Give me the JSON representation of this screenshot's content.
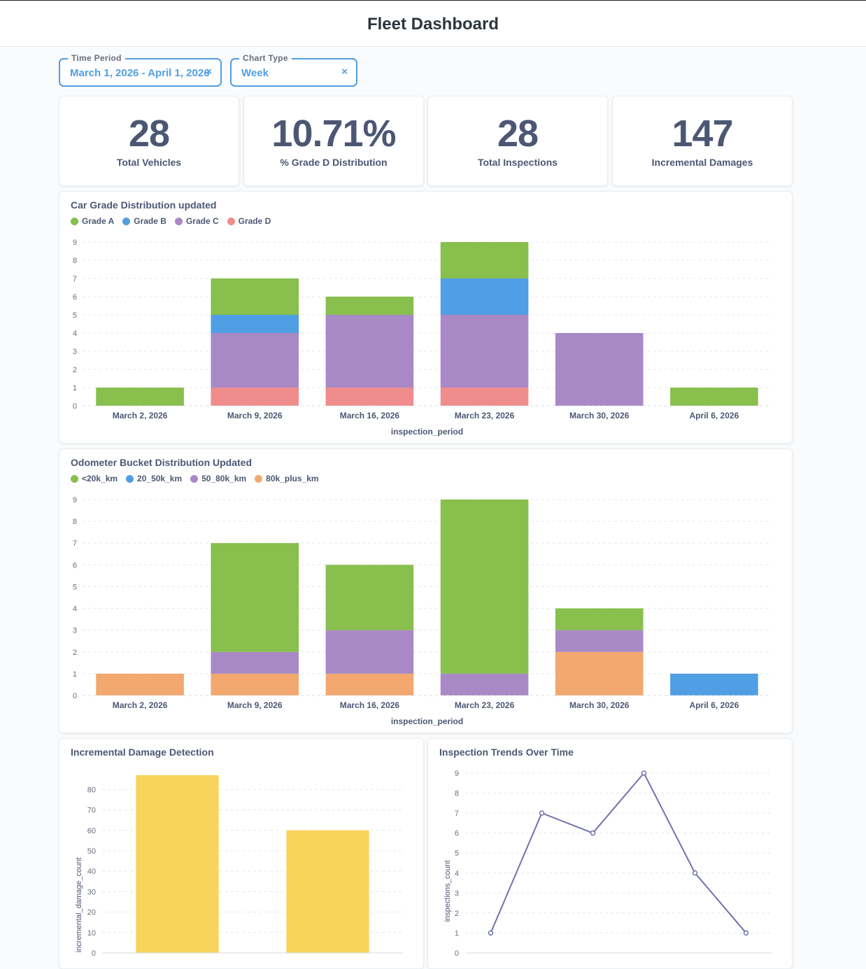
{
  "header": {
    "title": "Fleet Dashboard"
  },
  "filters": [
    {
      "label": "Time Period",
      "value": "March 1, 2026 - April 1, 2026",
      "clear_icon": "×"
    },
    {
      "label": "Chart Type",
      "value": "Week",
      "clear_icon": "×"
    }
  ],
  "kpis": [
    {
      "value": "28",
      "label": "Total Vehicles"
    },
    {
      "value": "10.71%",
      "label": "% Grade D Distribution"
    },
    {
      "value": "28",
      "label": "Total Inspections"
    },
    {
      "value": "147",
      "label": "Incremental Damages"
    }
  ],
  "colors": {
    "green": "#88bf4d",
    "blue": "#509ee3",
    "purple": "#a989c5",
    "red": "#ef8c8c",
    "orange": "#f2a86f",
    "yellow": "#f9d45c",
    "line": "#7172ad"
  },
  "chart_data": [
    {
      "type": "bar",
      "stacked": true,
      "title": "Car Grade Distribution updated",
      "xlabel": "inspection_period",
      "ylabel": "",
      "categories": [
        "March 2, 2026",
        "March 9, 2026",
        "March 16, 2026",
        "March 23, 2026",
        "March 30, 2026",
        "April 6, 2026"
      ],
      "ylim": [
        0,
        9
      ],
      "yticks": [
        0,
        1,
        2,
        3,
        4,
        5,
        6,
        7,
        8,
        9
      ],
      "grid": true,
      "legend_position": "top-left",
      "series": [
        {
          "name": "Grade D",
          "color": "#ef8c8c",
          "values": [
            0,
            1,
            1,
            1,
            0,
            0
          ]
        },
        {
          "name": "Grade C",
          "color": "#a989c5",
          "values": [
            0,
            3,
            4,
            4,
            4,
            0
          ]
        },
        {
          "name": "Grade B",
          "color": "#509ee3",
          "values": [
            0,
            1,
            0,
            2,
            0,
            0
          ]
        },
        {
          "name": "Grade A",
          "color": "#88bf4d",
          "values": [
            1,
            2,
            1,
            2,
            0,
            1
          ]
        }
      ],
      "legend_order": [
        "Grade A",
        "Grade B",
        "Grade C",
        "Grade D"
      ]
    },
    {
      "type": "bar",
      "stacked": true,
      "title": "Odometer Bucket Distribution Updated",
      "xlabel": "inspection_period",
      "ylabel": "",
      "categories": [
        "March 2, 2026",
        "March 9, 2026",
        "March 16, 2026",
        "March 23, 2026",
        "March 30, 2026",
        "April 6, 2026"
      ],
      "ylim": [
        0,
        9
      ],
      "yticks": [
        0,
        1,
        2,
        3,
        4,
        5,
        6,
        7,
        8,
        9
      ],
      "grid": true,
      "legend_position": "top-left",
      "series": [
        {
          "name": "80k_plus_km",
          "color": "#f2a86f",
          "values": [
            1,
            1,
            1,
            0,
            2,
            0
          ]
        },
        {
          "name": "50_80k_km",
          "color": "#a989c5",
          "values": [
            0,
            1,
            2,
            1,
            1,
            0
          ]
        },
        {
          "name": "20_50k_km",
          "color": "#509ee3",
          "values": [
            0,
            0,
            0,
            0,
            0,
            1
          ]
        },
        {
          "name": "<20k_km",
          "color": "#88bf4d",
          "values": [
            0,
            5,
            3,
            8,
            1,
            0
          ]
        }
      ],
      "legend_order": [
        "<20k_km",
        "20_50k_km",
        "50_80k_km",
        "80k_plus_km"
      ]
    },
    {
      "type": "bar",
      "title": "Incremental Damage Detection",
      "xlabel": "",
      "ylabel": "incremental_damage_count",
      "categories": [
        "",
        ""
      ],
      "values": [
        87,
        60
      ],
      "ylim": [
        0,
        88
      ],
      "yticks": [
        0,
        10,
        20,
        30,
        40,
        50,
        60,
        70,
        80
      ],
      "grid": true,
      "color": "#f9d45c"
    },
    {
      "type": "line",
      "title": "Inspection Trends Over Time",
      "xlabel": "",
      "ylabel": "inspections_count",
      "values": [
        1,
        7,
        6,
        9,
        4,
        1
      ],
      "ylim": [
        0,
        9
      ],
      "yticks": [
        0,
        1,
        2,
        3,
        4,
        5,
        6,
        7,
        8,
        9
      ],
      "grid": true,
      "color": "#7172ad"
    }
  ]
}
